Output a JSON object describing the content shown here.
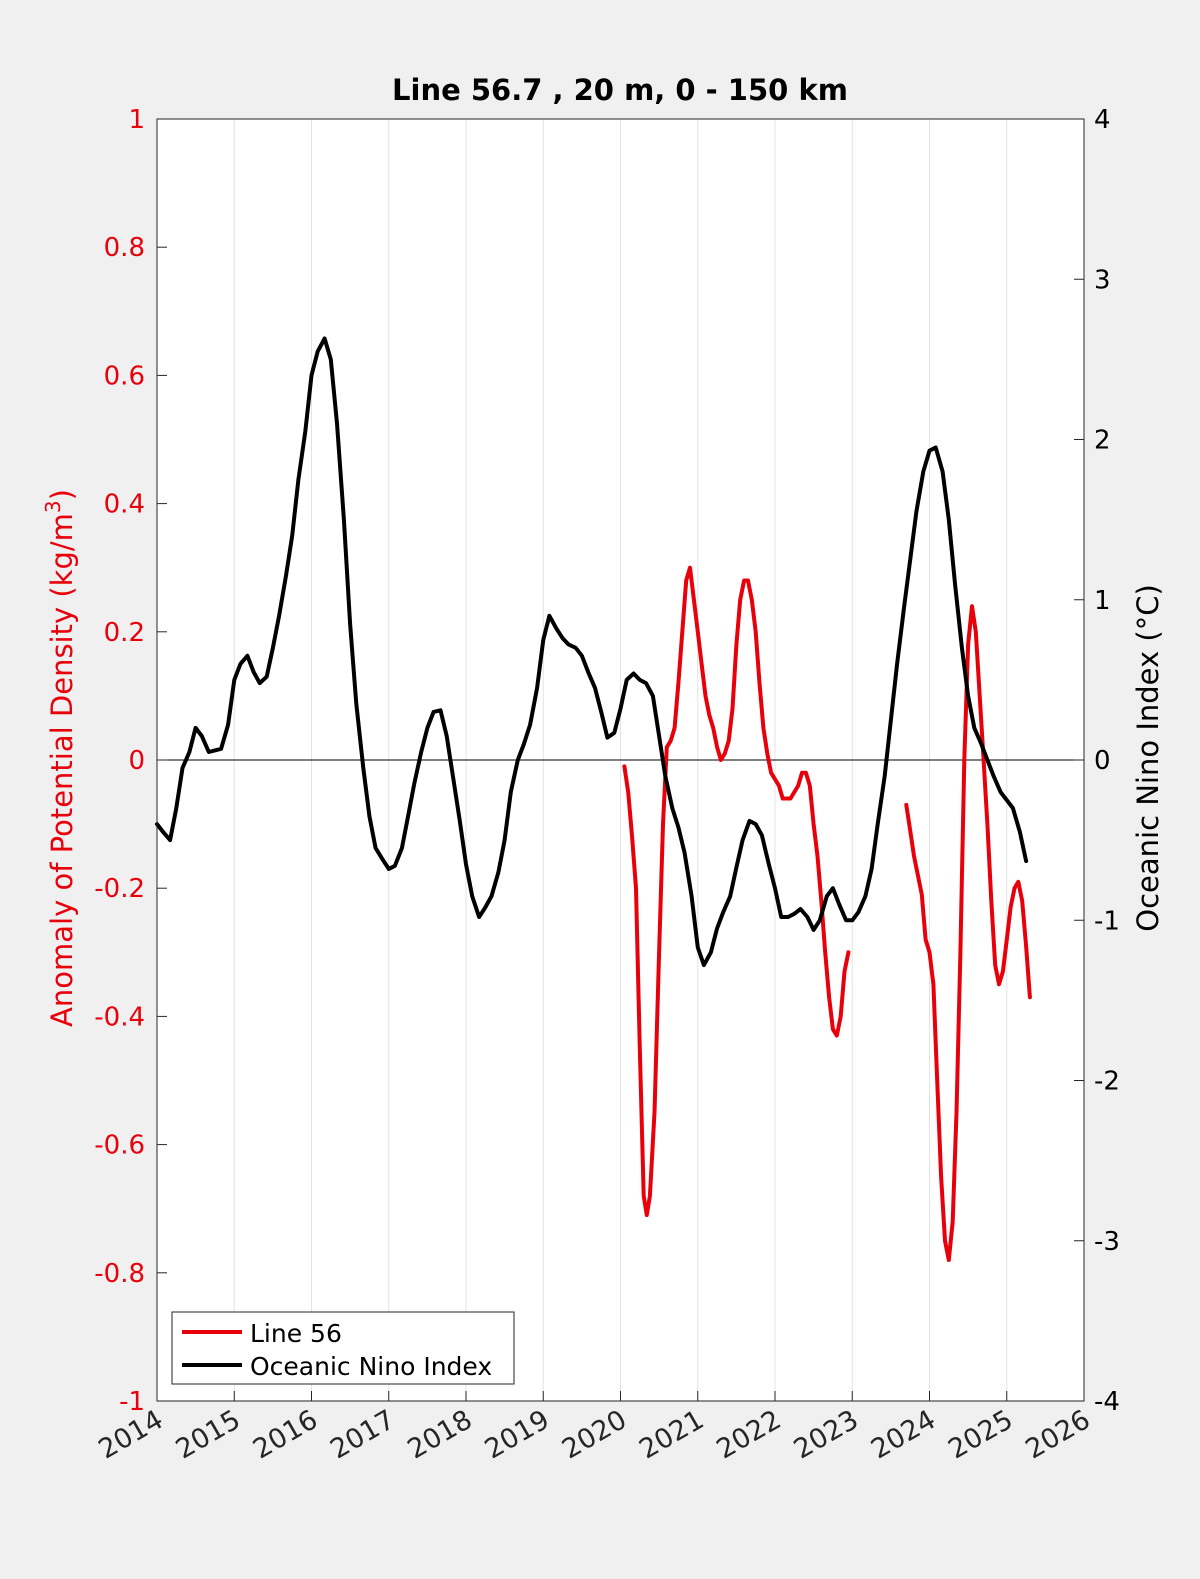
{
  "chart_data": {
    "type": "line",
    "title": "Line 56.7 , 20 m, 0 - 150 km",
    "xlabel": "",
    "xlim": [
      2014,
      2026
    ],
    "x_ticks": [
      "2014",
      "2015",
      "2016",
      "2017",
      "2018",
      "2019",
      "2020",
      "2021",
      "2022",
      "2023",
      "2024",
      "2025",
      "2026"
    ],
    "grid": "vertical gridlines at each year",
    "legend_position": "bottom-left",
    "left_axis": {
      "label_prefix": "Anomaly of Potential Density (kg/m",
      "label_superscript": "3",
      "label_suffix": ")",
      "ylim": [
        -1,
        1
      ],
      "ticks": [
        "-1",
        "-0.8",
        "-0.6",
        "-0.4",
        "-0.2",
        "0",
        "0.2",
        "0.4",
        "0.6",
        "0.8",
        "1"
      ],
      "color": "#e8000b"
    },
    "right_axis": {
      "label": "Oceanic Nino Index (°C)",
      "ylim": [
        -4,
        4
      ],
      "ticks": [
        "-4",
        "-3",
        "-2",
        "-1",
        "0",
        "1",
        "2",
        "3",
        "4"
      ],
      "color": "#000000"
    },
    "series": [
      {
        "name": "Line 56",
        "axis": "left",
        "color": "#e8000b",
        "segments": [
          [
            [
              2020.05,
              -0.01
            ],
            [
              2020.1,
              -0.05
            ],
            [
              2020.15,
              -0.12
            ],
            [
              2020.2,
              -0.2
            ],
            [
              2020.25,
              -0.45
            ],
            [
              2020.3,
              -0.68
            ],
            [
              2020.34,
              -0.71
            ],
            [
              2020.38,
              -0.68
            ],
            [
              2020.44,
              -0.55
            ],
            [
              2020.5,
              -0.3
            ],
            [
              2020.55,
              -0.1
            ],
            [
              2020.6,
              0.02
            ],
            [
              2020.65,
              0.03
            ],
            [
              2020.7,
              0.05
            ],
            [
              2020.75,
              0.12
            ],
            [
              2020.8,
              0.2
            ],
            [
              2020.85,
              0.28
            ],
            [
              2020.9,
              0.3
            ],
            [
              2020.95,
              0.25
            ],
            [
              2021.0,
              0.2
            ],
            [
              2021.05,
              0.15
            ],
            [
              2021.1,
              0.1
            ],
            [
              2021.15,
              0.07
            ],
            [
              2021.2,
              0.05
            ],
            [
              2021.25,
              0.02
            ],
            [
              2021.3,
              0.0
            ],
            [
              2021.35,
              0.01
            ],
            [
              2021.4,
              0.03
            ],
            [
              2021.45,
              0.08
            ],
            [
              2021.5,
              0.18
            ],
            [
              2021.55,
              0.25
            ],
            [
              2021.6,
              0.28
            ],
            [
              2021.65,
              0.28
            ],
            [
              2021.7,
              0.25
            ],
            [
              2021.75,
              0.2
            ],
            [
              2021.8,
              0.12
            ],
            [
              2021.85,
              0.05
            ],
            [
              2021.9,
              0.01
            ],
            [
              2021.95,
              -0.02
            ],
            [
              2022.05,
              -0.04
            ],
            [
              2022.1,
              -0.06
            ],
            [
              2022.15,
              -0.06
            ],
            [
              2022.2,
              -0.06
            ],
            [
              2022.25,
              -0.05
            ],
            [
              2022.3,
              -0.04
            ],
            [
              2022.35,
              -0.02
            ],
            [
              2022.4,
              -0.02
            ],
            [
              2022.45,
              -0.04
            ],
            [
              2022.5,
              -0.1
            ],
            [
              2022.55,
              -0.15
            ],
            [
              2022.6,
              -0.22
            ],
            [
              2022.65,
              -0.3
            ],
            [
              2022.7,
              -0.37
            ],
            [
              2022.75,
              -0.42
            ],
            [
              2022.8,
              -0.43
            ],
            [
              2022.85,
              -0.4
            ],
            [
              2022.9,
              -0.33
            ],
            [
              2022.95,
              -0.3
            ]
          ],
          [
            [
              2023.7,
              -0.07
            ],
            [
              2023.75,
              -0.11
            ],
            [
              2023.8,
              -0.15
            ],
            [
              2023.85,
              -0.18
            ],
            [
              2023.9,
              -0.21
            ],
            [
              2023.95,
              -0.28
            ],
            [
              2024.0,
              -0.3
            ],
            [
              2024.05,
              -0.35
            ],
            [
              2024.1,
              -0.5
            ],
            [
              2024.15,
              -0.65
            ],
            [
              2024.2,
              -0.75
            ],
            [
              2024.25,
              -0.78
            ],
            [
              2024.3,
              -0.72
            ],
            [
              2024.35,
              -0.55
            ],
            [
              2024.4,
              -0.3
            ],
            [
              2024.45,
              0.0
            ],
            [
              2024.5,
              0.18
            ],
            [
              2024.55,
              0.24
            ],
            [
              2024.6,
              0.2
            ],
            [
              2024.65,
              0.1
            ],
            [
              2024.7,
              0.0
            ],
            [
              2024.75,
              -0.1
            ],
            [
              2024.8,
              -0.22
            ],
            [
              2024.85,
              -0.32
            ],
            [
              2024.9,
              -0.35
            ],
            [
              2024.95,
              -0.33
            ],
            [
              2025.0,
              -0.28
            ],
            [
              2025.05,
              -0.23
            ],
            [
              2025.1,
              -0.2
            ],
            [
              2025.15,
              -0.19
            ],
            [
              2025.2,
              -0.22
            ],
            [
              2025.25,
              -0.29
            ],
            [
              2025.3,
              -0.37
            ]
          ]
        ]
      },
      {
        "name": "Oceanic Nino Index",
        "axis": "right",
        "color": "#000000",
        "segments": [
          [
            [
              2014.0,
              -0.4
            ],
            [
              2014.08,
              -0.45
            ],
            [
              2014.17,
              -0.5
            ],
            [
              2014.25,
              -0.3
            ],
            [
              2014.33,
              -0.05
            ],
            [
              2014.42,
              0.05
            ],
            [
              2014.5,
              0.2
            ],
            [
              2014.58,
              0.15
            ],
            [
              2014.67,
              0.05
            ],
            [
              2014.75,
              0.06
            ],
            [
              2014.83,
              0.07
            ],
            [
              2014.92,
              0.22
            ],
            [
              2015.0,
              0.5
            ],
            [
              2015.08,
              0.6
            ],
            [
              2015.17,
              0.65
            ],
            [
              2015.25,
              0.55
            ],
            [
              2015.33,
              0.48
            ],
            [
              2015.42,
              0.52
            ],
            [
              2015.5,
              0.7
            ],
            [
              2015.58,
              0.9
            ],
            [
              2015.67,
              1.15
            ],
            [
              2015.75,
              1.4
            ],
            [
              2015.83,
              1.75
            ],
            [
              2015.92,
              2.05
            ],
            [
              2016.0,
              2.4
            ],
            [
              2016.08,
              2.55
            ],
            [
              2016.17,
              2.63
            ],
            [
              2016.25,
              2.5
            ],
            [
              2016.33,
              2.1
            ],
            [
              2016.42,
              1.5
            ],
            [
              2016.5,
              0.85
            ],
            [
              2016.58,
              0.35
            ],
            [
              2016.67,
              -0.05
            ],
            [
              2016.75,
              -0.35
            ],
            [
              2016.83,
              -0.55
            ],
            [
              2016.92,
              -0.62
            ],
            [
              2017.0,
              -0.68
            ],
            [
              2017.08,
              -0.66
            ],
            [
              2017.17,
              -0.55
            ],
            [
              2017.25,
              -0.35
            ],
            [
              2017.33,
              -0.15
            ],
            [
              2017.42,
              0.05
            ],
            [
              2017.5,
              0.2
            ],
            [
              2017.58,
              0.3
            ],
            [
              2017.67,
              0.31
            ],
            [
              2017.75,
              0.15
            ],
            [
              2017.83,
              -0.1
            ],
            [
              2017.92,
              -0.38
            ],
            [
              2018.0,
              -0.65
            ],
            [
              2018.08,
              -0.85
            ],
            [
              2018.17,
              -0.98
            ],
            [
              2018.25,
              -0.92
            ],
            [
              2018.33,
              -0.85
            ],
            [
              2018.42,
              -0.7
            ],
            [
              2018.5,
              -0.5
            ],
            [
              2018.58,
              -0.2
            ],
            [
              2018.67,
              0.0
            ],
            [
              2018.75,
              0.1
            ],
            [
              2018.83,
              0.22
            ],
            [
              2018.92,
              0.45
            ],
            [
              2019.0,
              0.75
            ],
            [
              2019.08,
              0.9
            ],
            [
              2019.17,
              0.82
            ],
            [
              2019.25,
              0.76
            ],
            [
              2019.33,
              0.72
            ],
            [
              2019.42,
              0.7
            ],
            [
              2019.5,
              0.65
            ],
            [
              2019.58,
              0.55
            ],
            [
              2019.67,
              0.45
            ],
            [
              2019.75,
              0.3
            ],
            [
              2019.83,
              0.14
            ],
            [
              2019.92,
              0.17
            ],
            [
              2020.0,
              0.32
            ],
            [
              2020.08,
              0.5
            ],
            [
              2020.17,
              0.54
            ],
            [
              2020.25,
              0.5
            ],
            [
              2020.33,
              0.48
            ],
            [
              2020.42,
              0.4
            ],
            [
              2020.5,
              0.15
            ],
            [
              2020.58,
              -0.1
            ],
            [
              2020.67,
              -0.3
            ],
            [
              2020.75,
              -0.42
            ],
            [
              2020.83,
              -0.58
            ],
            [
              2020.92,
              -0.85
            ],
            [
              2021.0,
              -1.17
            ],
            [
              2021.08,
              -1.28
            ],
            [
              2021.17,
              -1.2
            ],
            [
              2021.25,
              -1.05
            ],
            [
              2021.33,
              -0.95
            ],
            [
              2021.42,
              -0.85
            ],
            [
              2021.5,
              -0.67
            ],
            [
              2021.58,
              -0.5
            ],
            [
              2021.67,
              -0.38
            ],
            [
              2021.75,
              -0.4
            ],
            [
              2021.83,
              -0.47
            ],
            [
              2021.92,
              -0.65
            ],
            [
              2022.0,
              -0.8
            ],
            [
              2022.08,
              -0.98
            ],
            [
              2022.17,
              -0.98
            ],
            [
              2022.25,
              -0.96
            ],
            [
              2022.33,
              -0.93
            ],
            [
              2022.42,
              -0.98
            ],
            [
              2022.5,
              -1.06
            ],
            [
              2022.58,
              -1.0
            ],
            [
              2022.67,
              -0.85
            ],
            [
              2022.75,
              -0.8
            ],
            [
              2022.83,
              -0.9
            ],
            [
              2022.92,
              -1.0
            ],
            [
              2023.0,
              -1.0
            ],
            [
              2023.08,
              -0.95
            ],
            [
              2023.17,
              -0.85
            ],
            [
              2023.25,
              -0.68
            ],
            [
              2023.33,
              -0.4
            ],
            [
              2023.42,
              -0.1
            ],
            [
              2023.5,
              0.25
            ],
            [
              2023.58,
              0.6
            ],
            [
              2023.67,
              0.95
            ],
            [
              2023.75,
              1.25
            ],
            [
              2023.83,
              1.55
            ],
            [
              2023.92,
              1.8
            ],
            [
              2024.0,
              1.93
            ],
            [
              2024.08,
              1.95
            ],
            [
              2024.17,
              1.8
            ],
            [
              2024.25,
              1.5
            ],
            [
              2024.33,
              1.1
            ],
            [
              2024.42,
              0.7
            ],
            [
              2024.5,
              0.4
            ],
            [
              2024.58,
              0.2
            ],
            [
              2024.67,
              0.1
            ],
            [
              2024.75,
              0.0
            ],
            [
              2024.83,
              -0.1
            ],
            [
              2024.92,
              -0.2
            ],
            [
              2025.0,
              -0.25
            ],
            [
              2025.08,
              -0.3
            ],
            [
              2025.17,
              -0.45
            ],
            [
              2025.25,
              -0.63
            ]
          ]
        ]
      }
    ]
  }
}
